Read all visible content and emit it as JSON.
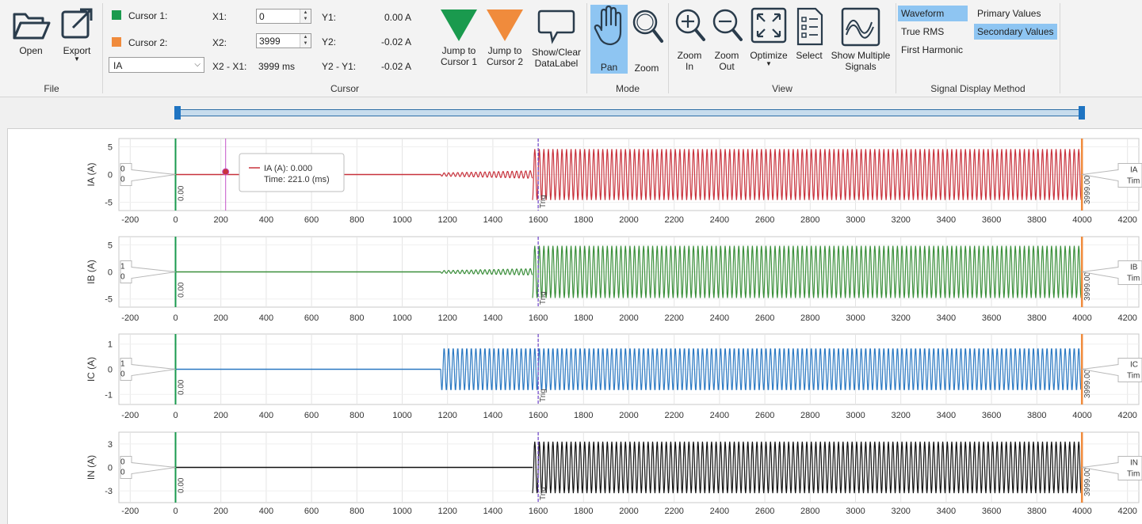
{
  "file_group": {
    "label": "File",
    "open": "Open",
    "export": "Export"
  },
  "cursor_group": {
    "label": "Cursor",
    "cursor1": {
      "label": "Cursor 1:",
      "color": "#1a9a4e"
    },
    "cursor2": {
      "label": "Cursor 2:",
      "color": "#f08b3c"
    },
    "x1_label": "X1:",
    "x1_value": "0",
    "x2_label": "X2:",
    "x2_value": "3999",
    "signal_select": "IA",
    "dx_label": "X2 - X1:",
    "dx_value": "3999 ms",
    "y1_label": "Y1:",
    "y1_value": "0.00 A",
    "y2_label": "Y2:",
    "y2_value": "-0.02 A",
    "dy_label": "Y2 - Y1:",
    "dy_value": "-0.02 A",
    "jump1_line1": "Jump to",
    "jump1_line2": "Cursor 1",
    "jump2_line1": "Jump to",
    "jump2_line2": "Cursor 2",
    "datalabel_line1": "Show/Clear",
    "datalabel_line2": "DataLabel"
  },
  "mode_group": {
    "label": "Mode",
    "pan": "Pan",
    "zoom": "Zoom"
  },
  "view_group": {
    "label": "View",
    "zoom_in_line1": "Zoom",
    "zoom_in_line2": "In",
    "zoom_out_line1": "Zoom",
    "zoom_out_line2": "Out",
    "optimize": "Optimize",
    "select": "Select",
    "multi_line1": "Show Multiple",
    "multi_line2": "Signals"
  },
  "signal_display_group": {
    "label": "Signal Display Method",
    "waveform": "Waveform",
    "true_rms": "True RMS",
    "first_harmonic": "First Harmonic",
    "primary_values": "Primary Values",
    "secondary_values": "Secondary Values"
  },
  "colors": {
    "accent": "#8ec5f2",
    "cursor1": "#1a9a4e",
    "cursor2": "#f08b3c",
    "trig": "#6a3fc8"
  },
  "tooltip": {
    "line1": "IA (A): 0.000",
    "line2": "Time: 221.0 (ms)"
  },
  "cursor_value_labels": {
    "c1": "0.00",
    "c2": "3999.00",
    "trig": "Trig"
  },
  "chart_data": [
    {
      "type": "line",
      "ylabel": "IA (A)",
      "color": "#c8323c",
      "yticks": [
        "5",
        "0",
        "-5"
      ],
      "ylim": [
        -6.5,
        6.5
      ],
      "xlim": [
        -250,
        4250
      ],
      "xticks": [
        "-200",
        "0",
        "200",
        "400",
        "600",
        "800",
        "1000",
        "1200",
        "1400",
        "1600",
        "1800",
        "2000",
        "2200",
        "2400",
        "2600",
        "2800",
        "3000",
        "3200",
        "3400",
        "3600",
        "3800",
        "4000",
        "4200"
      ],
      "pre_amplitude": 0.7,
      "pre_start": 1170,
      "fault_start": 1575,
      "fault_amplitude": 4.6,
      "left_box": [
        "0",
        "0"
      ],
      "right_box": [
        "IA",
        "Tim"
      ]
    },
    {
      "type": "line",
      "ylabel": "IB (A)",
      "color": "#3a8f3a",
      "yticks": [
        "5",
        "0",
        "-5"
      ],
      "ylim": [
        -6.5,
        6.5
      ],
      "xlim": [
        -250,
        4250
      ],
      "xticks": [
        "-200",
        "0",
        "200",
        "400",
        "600",
        "800",
        "1000",
        "1200",
        "1400",
        "1600",
        "1800",
        "2000",
        "2200",
        "2400",
        "2600",
        "2800",
        "3000",
        "3200",
        "3400",
        "3600",
        "3800",
        "4000",
        "4200"
      ],
      "pre_amplitude": 0.6,
      "pre_start": 1170,
      "fault_start": 1575,
      "fault_amplitude": 4.8,
      "left_box": [
        "1",
        "0"
      ],
      "right_box": [
        "IB",
        "Tim"
      ]
    },
    {
      "type": "line",
      "ylabel": "IC (A)",
      "color": "#2a78c2",
      "yticks": [
        "1",
        "0",
        "-1"
      ],
      "ylim": [
        -1.4,
        1.4
      ],
      "xlim": [
        -250,
        4250
      ],
      "xticks": [
        "-200",
        "0",
        "200",
        "400",
        "600",
        "800",
        "1000",
        "1200",
        "1400",
        "1600",
        "1800",
        "2000",
        "2200",
        "2400",
        "2600",
        "2800",
        "3000",
        "3200",
        "3400",
        "3600",
        "3800",
        "4000",
        "4200"
      ],
      "pre_amplitude": 0.0,
      "pre_start": 1170,
      "fault_start": 1170,
      "fault_amplitude": 0.85,
      "left_box": [
        "1",
        "0"
      ],
      "right_box": [
        "IC",
        "Tim"
      ]
    },
    {
      "type": "line",
      "ylabel": "IN (A)",
      "color": "#111111",
      "yticks": [
        "3",
        "0",
        "-3"
      ],
      "ylim": [
        -4.5,
        4.5
      ],
      "xlim": [
        -250,
        4250
      ],
      "xticks": [
        "-200",
        "0",
        "200",
        "400",
        "600",
        "800",
        "1000",
        "1200",
        "1400",
        "1600",
        "1800",
        "2000",
        "2200",
        "2400",
        "2600",
        "2800",
        "3000",
        "3200",
        "3400",
        "3600",
        "3800",
        "4000",
        "4200"
      ],
      "pre_amplitude": 0.0,
      "pre_start": 1575,
      "fault_start": 1575,
      "fault_amplitude": 3.3,
      "left_box": [
        "0",
        "0"
      ],
      "right_box": [
        "IN",
        "Tim"
      ]
    }
  ]
}
